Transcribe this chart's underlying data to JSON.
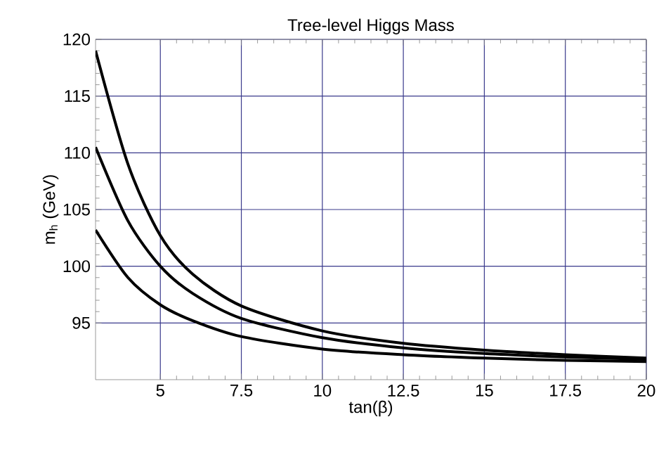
{
  "chart_data": {
    "type": "line",
    "title": "Tree-level Higgs Mass",
    "xlabel": "tan(β)",
    "ylabel": "m$_{h}$ (GeV)",
    "xlim": [
      3,
      20
    ],
    "ylim": [
      90,
      120
    ],
    "xticks": [
      5,
      7.5,
      10,
      12.5,
      15,
      17.5,
      20
    ],
    "yticks": [
      95,
      100,
      105,
      110,
      115,
      120
    ],
    "grid": true,
    "x": [
      3,
      4,
      5,
      6,
      7.5,
      10,
      12.5,
      15,
      17.5,
      20
    ],
    "series": [
      {
        "color": "#000000",
        "values": [
          119,
          109,
          102.7,
          99.3,
          96.5,
          94.3,
          93.2,
          92.6,
          92.2,
          91.9
        ]
      },
      {
        "color": "#000000",
        "values": [
          110.5,
          104,
          100,
          97.6,
          95.4,
          93.7,
          92.8,
          92.3,
          92.0,
          91.8
        ]
      },
      {
        "color": "#000000",
        "values": [
          103.2,
          99,
          96.6,
          95.2,
          93.8,
          92.7,
          92.2,
          91.9,
          91.7,
          91.6
        ]
      }
    ]
  }
}
